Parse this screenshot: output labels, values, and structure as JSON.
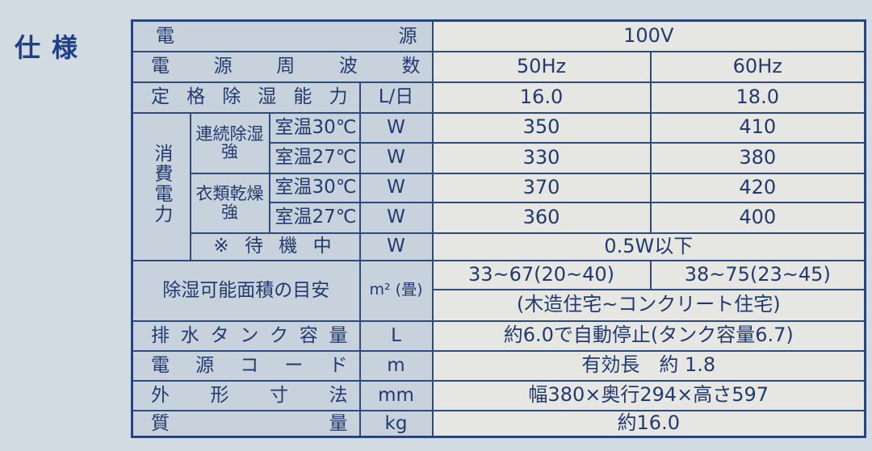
{
  "title": "仕様",
  "rows": {
    "voltage": {
      "label_left": "電",
      "label_right": "源",
      "value": "100V"
    },
    "frequency": {
      "label": "電源周波数",
      "v50": "50Hz",
      "v60": "60Hz"
    },
    "capacity": {
      "label": "定格除湿能力",
      "unit": "L/日",
      "v50": "16.0",
      "v60": "18.0"
    },
    "power": {
      "label": "消費電力",
      "continuous": {
        "label": "連続除湿強",
        "t30": {
          "label": "室温30℃",
          "unit": "W",
          "v50": "350",
          "v60": "410"
        },
        "t27": {
          "label": "室温27℃",
          "unit": "W",
          "v50": "330",
          "v60": "380"
        }
      },
      "laundry": {
        "label": "衣類乾燥強",
        "t30": {
          "label": "室温30℃",
          "unit": "W",
          "v50": "370",
          "v60": "420"
        },
        "t27": {
          "label": "室温27℃",
          "unit": "W",
          "v50": "360",
          "v60": "400"
        }
      },
      "standby": {
        "label": "※ 待 機 中",
        "unit": "W",
        "value": "0.5W以下"
      }
    },
    "area": {
      "label": "除湿可能面積の目安",
      "unit": "m² (畳)",
      "v50": "33~67(20~40)",
      "v60": "38~75(23~45)",
      "note": "(木造住宅~コンクリート住宅)"
    },
    "tank": {
      "label": "排水タンク容量",
      "unit": "L",
      "value": "約6.0で自動停止(タンク容量6.7)"
    },
    "cord": {
      "label": "電源コード",
      "unit": "m",
      "value": "有効長　約 1.8"
    },
    "dims": {
      "label": "外形寸法",
      "unit": "mm",
      "value": "幅380×奥行294×高さ597"
    },
    "mass": {
      "label": "質量",
      "unit": "kg",
      "value": "約16.0"
    }
  }
}
